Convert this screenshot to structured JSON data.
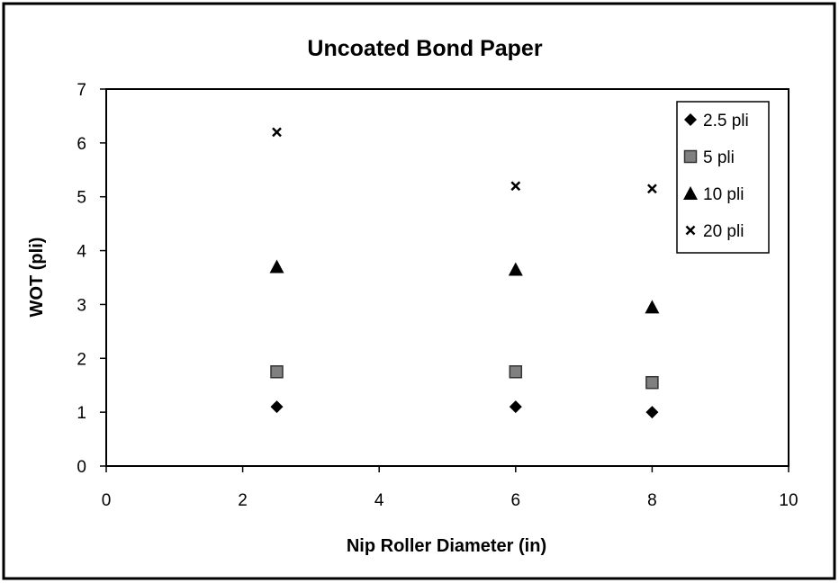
{
  "chart_data": {
    "type": "scatter",
    "title": "Uncoated Bond Paper",
    "xlabel": "Nip Roller Diameter (in)",
    "ylabel": "WOT (pli)",
    "xlim": [
      0,
      10
    ],
    "ylim": [
      0,
      7
    ],
    "xticks": [
      "0",
      "2",
      "4",
      "6",
      "8",
      "10"
    ],
    "yticks": [
      "0",
      "1",
      "2",
      "3",
      "4",
      "5",
      "6",
      "7"
    ],
    "grid": false,
    "legend_position": "top-right",
    "series": [
      {
        "name": "2.5 pli",
        "marker": "diamond",
        "color": "#000000",
        "points": [
          {
            "x": 2.5,
            "y": 1.1
          },
          {
            "x": 6,
            "y": 1.1
          },
          {
            "x": 8,
            "y": 1.0
          }
        ]
      },
      {
        "name": "5 pli",
        "marker": "square",
        "color": "#808080",
        "points": [
          {
            "x": 2.5,
            "y": 1.75
          },
          {
            "x": 6,
            "y": 1.75
          },
          {
            "x": 8,
            "y": 1.55
          }
        ]
      },
      {
        "name": "10 pli",
        "marker": "triangle",
        "color": "#000000",
        "points": [
          {
            "x": 2.5,
            "y": 3.7
          },
          {
            "x": 6,
            "y": 3.65
          },
          {
            "x": 8,
            "y": 2.95
          }
        ]
      },
      {
        "name": "20 pli",
        "marker": "x",
        "color": "#000000",
        "points": [
          {
            "x": 2.5,
            "y": 6.2
          },
          {
            "x": 6,
            "y": 5.2
          },
          {
            "x": 8,
            "y": 5.15
          }
        ]
      }
    ]
  }
}
